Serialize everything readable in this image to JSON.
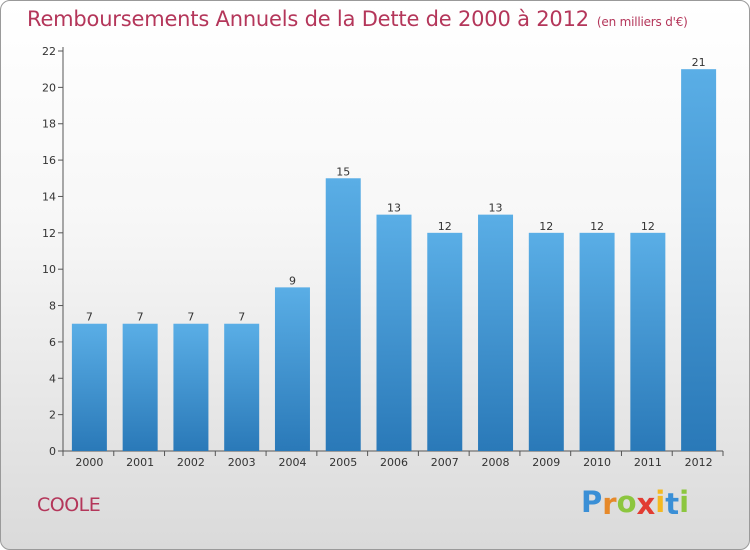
{
  "chart_data": {
    "type": "bar",
    "title": "Remboursements Annuels de la Dette de 2000 à 2012",
    "subtitle": "(en milliers d'€)",
    "categories": [
      "2000",
      "2001",
      "2002",
      "2003",
      "2004",
      "2005",
      "2006",
      "2007",
      "2008",
      "2009",
      "2010",
      "2011",
      "2012"
    ],
    "values": [
      7,
      7,
      7,
      7,
      9,
      15,
      13,
      12,
      13,
      12,
      12,
      12,
      21
    ],
    "ylim": [
      0,
      22
    ],
    "yticks": [
      0,
      2,
      4,
      6,
      8,
      10,
      12,
      14,
      16,
      18,
      20,
      22
    ],
    "grid": false,
    "bar_color_top": "#5aaee6",
    "bar_color_bottom": "#2a79b8"
  },
  "commune": "COOLE",
  "brand": {
    "letters": [
      "P",
      "r",
      "o",
      "x",
      "i",
      "t",
      "i"
    ],
    "colors": [
      "#3a8fd6",
      "#e6892a",
      "#8cc63f",
      "#e23c32",
      "#f3b922",
      "#3a8fd6",
      "#8cc63f"
    ]
  }
}
